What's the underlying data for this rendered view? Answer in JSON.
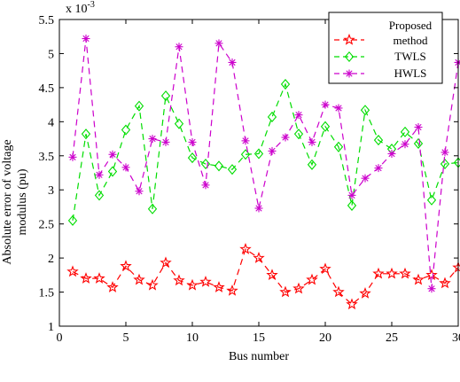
{
  "chart_data": {
    "type": "line",
    "title": "",
    "xlabel": "Bus number",
    "ylabel_lines": [
      "Absolute error of voltage",
      "modulus (pu)"
    ],
    "y_multiplier_label": "x 10",
    "y_multiplier_exp": "-3",
    "xlim": [
      0,
      30
    ],
    "ylim": [
      1,
      5.5
    ],
    "x_ticks": [
      0,
      5,
      10,
      15,
      20,
      25,
      30
    ],
    "y_ticks": [
      1,
      1.5,
      2,
      2.5,
      3,
      3.5,
      4,
      4.5,
      5,
      5.5
    ],
    "grid": false,
    "legend_position": "top-right",
    "x": [
      1,
      2,
      3,
      4,
      5,
      6,
      7,
      8,
      9,
      10,
      11,
      12,
      13,
      14,
      15,
      16,
      17,
      18,
      19,
      20,
      21,
      22,
      23,
      24,
      25,
      26,
      27,
      28,
      29,
      30
    ],
    "series": [
      {
        "name": "Proposed method",
        "legend_lines": [
          "Proposed",
          "method"
        ],
        "color": "#ff0000",
        "marker": "star",
        "values": [
          1.8,
          1.7,
          1.7,
          1.57,
          1.88,
          1.68,
          1.6,
          1.93,
          1.67,
          1.6,
          1.65,
          1.57,
          1.52,
          2.13,
          2.0,
          1.75,
          1.5,
          1.55,
          1.68,
          1.84,
          1.5,
          1.32,
          1.48,
          1.77,
          1.77,
          1.77,
          1.68,
          1.75,
          1.63,
          1.86
        ]
      },
      {
        "name": "TWLS",
        "legend_lines": [
          "TWLS"
        ],
        "color": "#00dd00",
        "marker": "diamond",
        "values": [
          2.55,
          3.82,
          2.92,
          3.27,
          3.88,
          4.23,
          2.72,
          4.38,
          3.97,
          3.47,
          3.38,
          3.35,
          3.3,
          3.52,
          3.53,
          4.07,
          4.55,
          3.82,
          3.37,
          3.93,
          3.63,
          2.77,
          4.17,
          3.73,
          3.6,
          3.85,
          3.68,
          2.85,
          3.38,
          3.4
        ]
      },
      {
        "name": "HWLS",
        "legend_lines": [
          "HWLS"
        ],
        "color": "#cc00cc",
        "marker": "asterisk",
        "values": [
          3.48,
          5.22,
          3.22,
          3.52,
          3.33,
          2.98,
          3.75,
          3.7,
          5.1,
          3.7,
          3.07,
          5.15,
          4.87,
          3.72,
          2.73,
          3.57,
          3.77,
          4.1,
          3.7,
          4.25,
          4.2,
          2.92,
          3.17,
          3.32,
          3.53,
          3.67,
          3.92,
          1.55,
          3.55,
          4.87
        ]
      }
    ]
  }
}
